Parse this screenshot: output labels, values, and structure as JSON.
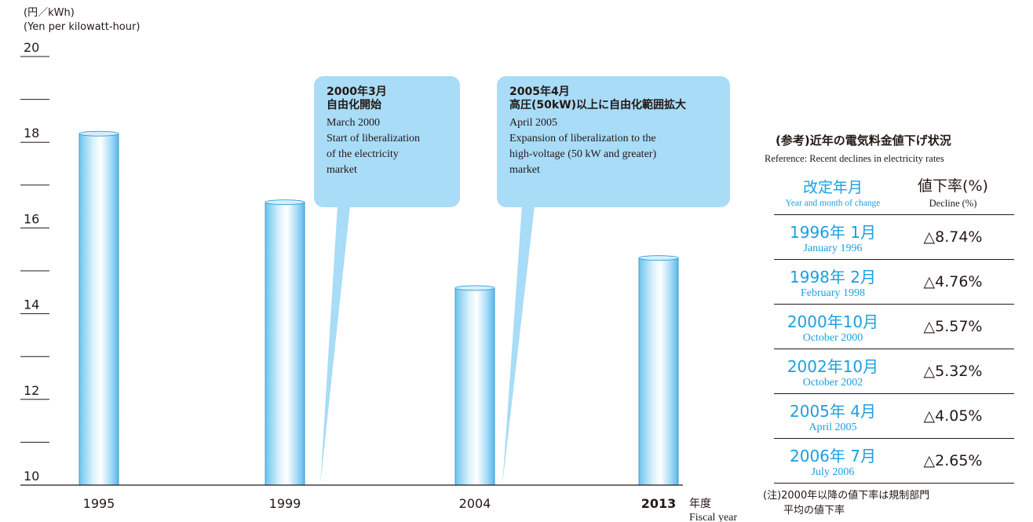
{
  "chart_data": {
    "type": "bar",
    "ylabel_ja": "(円／kWh)",
    "ylabel_en": "(Yen per kilowatt-hour)",
    "categories": [
      "1995",
      "1999",
      "2004",
      "2013"
    ],
    "highlight_category": "2013",
    "values": [
      18.2,
      16.6,
      14.6,
      15.3
    ],
    "ylim": [
      10,
      20
    ],
    "yticks": [
      "20",
      "18",
      "16",
      "14",
      "12",
      "10"
    ],
    "xlabel_ja": "年度",
    "xlabel_en": "Fiscal year",
    "bar_color": "#a8dcf7",
    "callouts": [
      {
        "title_ja_1": "2000年3月",
        "title_ja_2": "自由化開始",
        "en_1": "March 2000",
        "en_2": "Start of liberalization",
        "en_3": "of the electricity",
        "en_4": "market"
      },
      {
        "title_ja_1": "2005年4月",
        "title_ja_2": "高圧(50kW)以上に自由化範囲拡大",
        "en_1": "April 2005",
        "en_2": "Expansion of liberalization to the",
        "en_3": "high-voltage (50 kW and greater)",
        "en_4": "market"
      }
    ]
  },
  "reference": {
    "title": "(参考)近年の電気料金値下げ状況",
    "subtitle": "Reference: Recent declines in electricity rates",
    "col1_ja": "改定年月",
    "col1_en": "Year and month of change",
    "col2_ja": "値下率(%)",
    "col2_en": "Decline (%)",
    "rows": [
      {
        "date_ja": "1996年  1月",
        "date_en": "January 1996",
        "decline": "△8.74%"
      },
      {
        "date_ja": "1998年  2月",
        "date_en": "February 1998",
        "decline": "△4.76%"
      },
      {
        "date_ja": "2000年10月",
        "date_en": "October 2000",
        "decline": "△5.57%"
      },
      {
        "date_ja": "2002年10月",
        "date_en": "October 2002",
        "decline": "△5.32%"
      },
      {
        "date_ja": "2005年  4月",
        "date_en": "April 2005",
        "decline": "△4.05%"
      },
      {
        "date_ja": "2006年  7月",
        "date_en": "July 2006",
        "decline": "△2.65%"
      }
    ],
    "note_line1": "(注)2000年以降の値下率は規制部門",
    "note_line2": "平均の値下率"
  }
}
